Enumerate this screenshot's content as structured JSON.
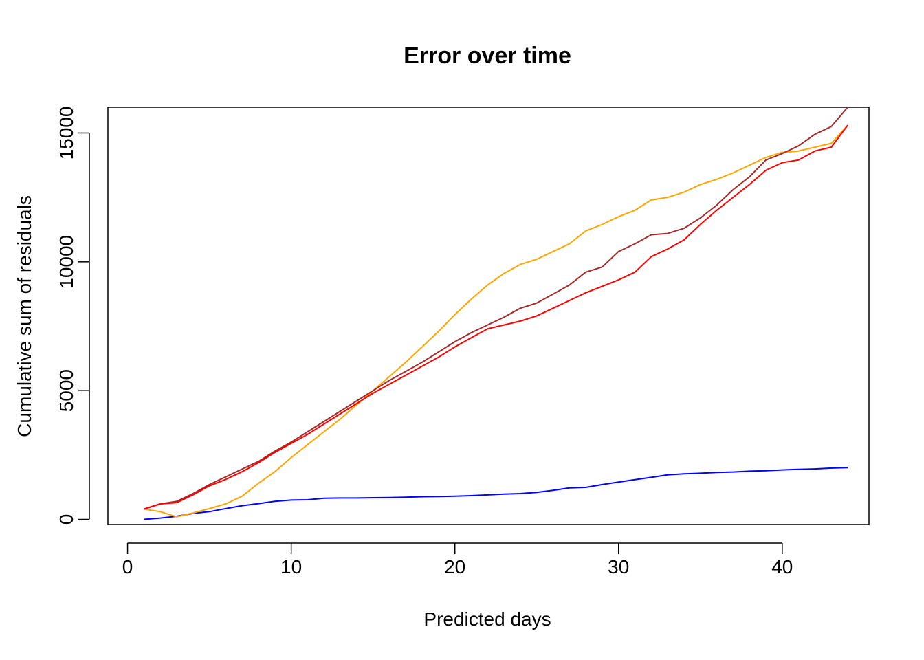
{
  "chart_data": {
    "type": "line",
    "title": "Error over time",
    "xlabel": "Predicted days",
    "ylabel": "Cumulative sum of residuals",
    "xlim": [
      -1.2,
      45.3
    ],
    "ylim": [
      -200,
      16000
    ],
    "x_ticks": [
      0,
      10,
      20,
      30,
      40
    ],
    "y_ticks": [
      0,
      5000,
      10000,
      15000
    ],
    "grid": false,
    "legend": "none",
    "x": [
      1,
      2,
      3,
      4,
      5,
      6,
      7,
      8,
      9,
      10,
      11,
      12,
      13,
      14,
      15,
      16,
      17,
      18,
      19,
      20,
      21,
      22,
      23,
      24,
      25,
      26,
      27,
      28,
      29,
      30,
      31,
      32,
      33,
      34,
      35,
      36,
      37,
      38,
      39,
      40,
      41,
      42,
      43,
      44
    ],
    "series": [
      {
        "color": "#0000ff",
        "values": [
          0,
          50,
          120,
          230,
          300,
          420,
          530,
          610,
          700,
          750,
          760,
          820,
          830,
          830,
          840,
          850,
          860,
          880,
          890,
          900,
          920,
          950,
          980,
          1000,
          1050,
          1130,
          1220,
          1240,
          1350,
          1450,
          1540,
          1630,
          1730,
          1770,
          1790,
          1820,
          1840,
          1870,
          1890,
          1920,
          1940,
          1960,
          1990,
          2010
        ]
      },
      {
        "color": "#ffa500",
        "values": [
          400,
          300,
          100,
          250,
          420,
          600,
          900,
          1400,
          1850,
          2400,
          2900,
          3400,
          3900,
          4450,
          5000,
          5550,
          6100,
          6700,
          7300,
          7950,
          8550,
          9100,
          9550,
          9900,
          10100,
          10400,
          10700,
          11200,
          11450,
          11750,
          12000,
          12400,
          12500,
          12700,
          13000,
          13200,
          13450,
          13750,
          14050,
          14250,
          14300,
          14450,
          14600,
          15300
        ]
      },
      {
        "color": "#a52a2a",
        "values": [
          400,
          600,
          700,
          1000,
          1350,
          1650,
          1950,
          2250,
          2650,
          3000,
          3400,
          3800,
          4200,
          4600,
          5000,
          5400,
          5750,
          6100,
          6500,
          6900,
          7250,
          7550,
          7850,
          8200,
          8400,
          8750,
          9100,
          9600,
          9800,
          10400,
          10700,
          11050,
          11100,
          11300,
          11700,
          12200,
          12800,
          13300,
          13950,
          14200,
          14500,
          14950,
          15250,
          16000
        ]
      },
      {
        "color": "#ff0000",
        "values": [
          400,
          600,
          650,
          950,
          1300,
          1550,
          1850,
          2200,
          2600,
          2950,
          3300,
          3700,
          4100,
          4500,
          4900,
          5250,
          5600,
          5950,
          6300,
          6700,
          7050,
          7400,
          7550,
          7700,
          7900,
          8200,
          8500,
          8800,
          9050,
          9300,
          9600,
          10200,
          10500,
          10850,
          11450,
          12000,
          12500,
          13000,
          13550,
          13850,
          13950,
          14300,
          14450,
          15300
        ]
      }
    ]
  }
}
